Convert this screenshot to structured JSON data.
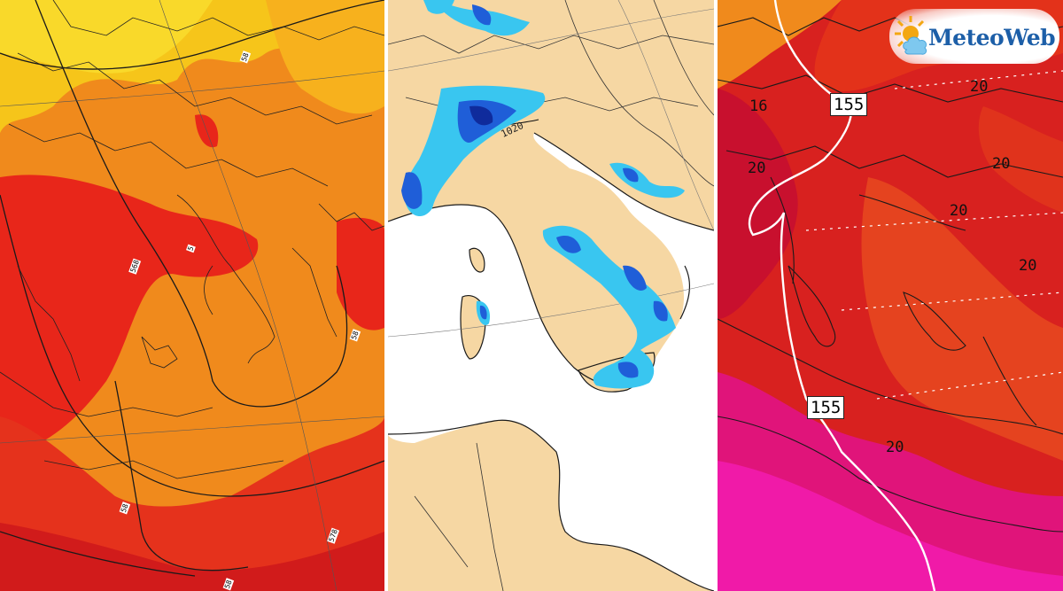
{
  "branding": {
    "logo_text": "MeteoWeb"
  },
  "colors": {
    "temp_yellow": "#f6c51a",
    "temp_orange": "#f08a1c",
    "temp_red": "#e8261a",
    "temp_deep_red": "#c8102e",
    "temp_magenta": "#e0147a",
    "precip_light_blue": "#39c6f0",
    "precip_blue": "#1f5ed8",
    "precip_navy": "#0f2b9c",
    "land_tan": "#f6d7a3",
    "sea_white": "#ffffff"
  },
  "panels": {
    "left": {
      "small_labels": [
        "58",
        "568",
        "5",
        "58",
        "58",
        "578",
        "58"
      ]
    },
    "middle": {
      "isobar_label": "1020"
    },
    "right": {
      "isoline_labels": [
        "155",
        "155"
      ],
      "temperature_labels": [
        "16",
        "20",
        "20",
        "20",
        "20",
        "20",
        "20"
      ]
    }
  }
}
